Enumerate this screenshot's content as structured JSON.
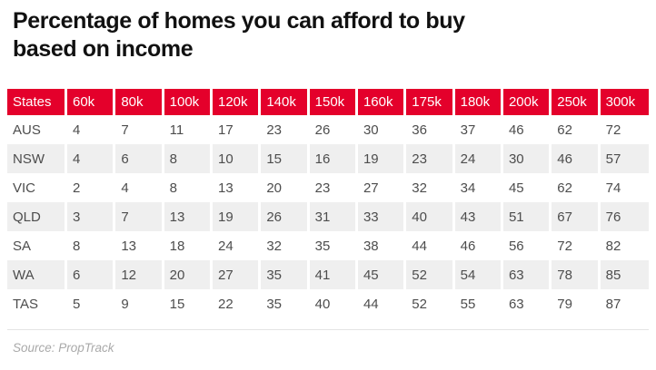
{
  "title": {
    "line1": "Percentage of homes you can afford to buy",
    "line2": "based on income"
  },
  "source": "Source: PropTrack",
  "colors": {
    "header_bg": "#e4002b",
    "header_text": "#ffffff",
    "row_alt_bg": "#efefef",
    "cell_text": "#4d4d4d",
    "title_text": "#111111",
    "source_text": "#a9a9a9",
    "divider": "#e4e4e4"
  },
  "chart_data": {
    "type": "table",
    "title": "Percentage of homes you can afford to buy based on income",
    "columns": [
      "States",
      "60k",
      "80k",
      "100k",
      "120k",
      "140k",
      "150k",
      "160k",
      "175k",
      "180k",
      "200k",
      "250k",
      "300k"
    ],
    "rows": [
      {
        "state": "AUS",
        "values": [
          4,
          7,
          11,
          17,
          23,
          26,
          30,
          36,
          37,
          46,
          62,
          72
        ]
      },
      {
        "state": "NSW",
        "values": [
          4,
          6,
          8,
          10,
          15,
          16,
          19,
          23,
          24,
          30,
          46,
          57
        ]
      },
      {
        "state": "VIC",
        "values": [
          2,
          4,
          8,
          13,
          20,
          23,
          27,
          32,
          34,
          45,
          62,
          74
        ]
      },
      {
        "state": "QLD",
        "values": [
          3,
          7,
          13,
          19,
          26,
          31,
          33,
          40,
          43,
          51,
          67,
          76
        ]
      },
      {
        "state": "SA",
        "values": [
          8,
          13,
          18,
          24,
          32,
          35,
          38,
          44,
          46,
          56,
          72,
          82
        ]
      },
      {
        "state": "WA",
        "values": [
          6,
          12,
          20,
          27,
          35,
          41,
          45,
          52,
          54,
          63,
          78,
          85
        ]
      },
      {
        "state": "TAS",
        "values": [
          5,
          9,
          15,
          22,
          35,
          40,
          44,
          52,
          55,
          63,
          79,
          87
        ]
      }
    ],
    "source": "Source: PropTrack",
    "notes": "values are percentages; header row red with white labels; state rows alternate white and light gray"
  }
}
